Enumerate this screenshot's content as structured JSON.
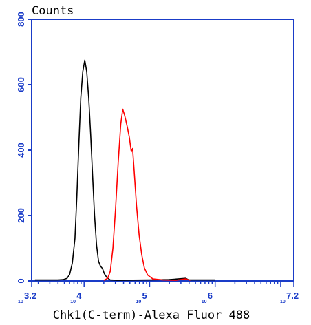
{
  "chart_data": {
    "type": "line",
    "ylabel": "Counts",
    "xlabel": "Chk1(C-term)-Alexa Fluor 488",
    "x_scale": "log10",
    "xlim": [
      3.2,
      7.2
    ],
    "ylim": [
      0,
      800
    ],
    "y_ticks": [
      0,
      200,
      400,
      600,
      800
    ],
    "x_tick_labels": [
      {
        "base": "10",
        "exp": "3.2",
        "value": 3.2
      },
      {
        "base": "10",
        "exp": "4",
        "value": 4
      },
      {
        "base": "10",
        "exp": "5",
        "value": 5
      },
      {
        "base": "10",
        "exp": "6",
        "value": 6
      },
      {
        "base": "10",
        "exp": "7.2",
        "value": 7.2
      }
    ],
    "grid": false,
    "legend": "none",
    "series": [
      {
        "color": "#000000",
        "points": [
          [
            3.25,
            3
          ],
          [
            3.6,
            3
          ],
          [
            3.68,
            4
          ],
          [
            3.74,
            8
          ],
          [
            3.78,
            20
          ],
          [
            3.82,
            55
          ],
          [
            3.86,
            130
          ],
          [
            3.89,
            260
          ],
          [
            3.92,
            420
          ],
          [
            3.95,
            560
          ],
          [
            3.98,
            640
          ],
          [
            4.01,
            675
          ],
          [
            4.04,
            640
          ],
          [
            4.07,
            560
          ],
          [
            4.1,
            450
          ],
          [
            4.13,
            320
          ],
          [
            4.16,
            200
          ],
          [
            4.19,
            110
          ],
          [
            4.22,
            60
          ],
          [
            4.25,
            45
          ],
          [
            4.28,
            38
          ],
          [
            4.31,
            22
          ],
          [
            4.35,
            10
          ],
          [
            4.4,
            3
          ],
          [
            4.5,
            2
          ],
          [
            5.0,
            3
          ],
          [
            5.3,
            4
          ],
          [
            5.55,
            8
          ],
          [
            5.6,
            3
          ],
          [
            6.0,
            3
          ]
        ]
      },
      {
        "color": "#ff0000",
        "points": [
          [
            4.3,
            2
          ],
          [
            4.36,
            8
          ],
          [
            4.4,
            30
          ],
          [
            4.44,
            100
          ],
          [
            4.48,
            220
          ],
          [
            4.52,
            360
          ],
          [
            4.56,
            480
          ],
          [
            4.59,
            525
          ],
          [
            4.62,
            505
          ],
          [
            4.66,
            470
          ],
          [
            4.69,
            440
          ],
          [
            4.72,
            395
          ],
          [
            4.74,
            405
          ],
          [
            4.77,
            320
          ],
          [
            4.8,
            230
          ],
          [
            4.84,
            140
          ],
          [
            4.88,
            80
          ],
          [
            4.92,
            40
          ],
          [
            4.97,
            18
          ],
          [
            5.05,
            6
          ],
          [
            5.2,
            3
          ],
          [
            5.4,
            2
          ],
          [
            5.55,
            6
          ],
          [
            5.62,
            2
          ]
        ]
      }
    ]
  }
}
